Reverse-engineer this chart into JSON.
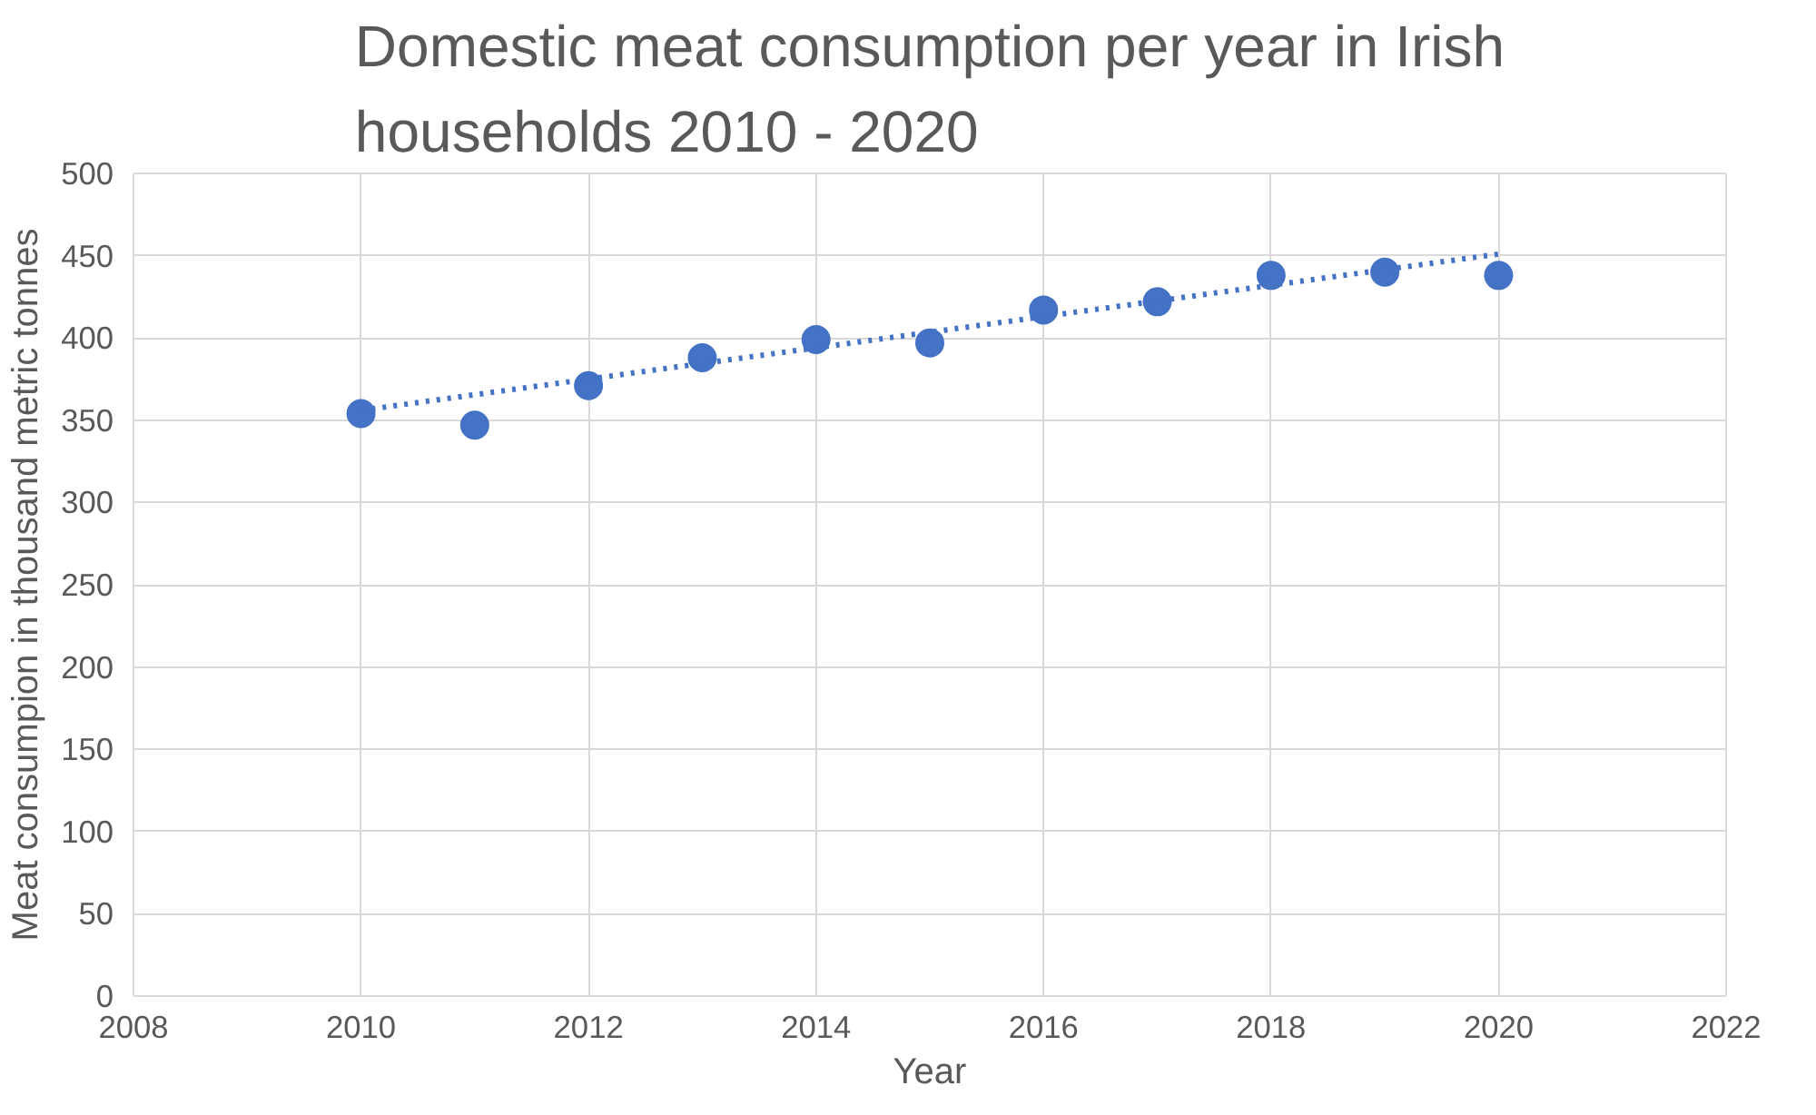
{
  "chart_data": {
    "type": "scatter",
    "title": "Domestic meat consumption per year in Irish households 2010 - 2020",
    "xlabel": "Year",
    "ylabel": "Meat consumpion in thousand metric tonnes",
    "series": [
      {
        "color": "#4472c4",
        "marker": "circle",
        "x": [
          2010,
          2011,
          2012,
          2013,
          2014,
          2015,
          2016,
          2017,
          2018,
          2019,
          2020
        ],
        "values": [
          354,
          347,
          371,
          388,
          399,
          397,
          417,
          422,
          438,
          440,
          438
        ]
      },
      {
        "type": "line",
        "color": "#4472c4",
        "line_style": "dotted",
        "marker": "none",
        "x": [
          2010,
          2020
        ],
        "values": [
          356,
          451
        ]
      }
    ],
    "xlim": [
      2008,
      2022
    ],
    "xticks": [
      2008,
      2010,
      2012,
      2014,
      2016,
      2018,
      2020,
      2022
    ],
    "ylim": [
      0,
      500
    ],
    "yticks": [
      0,
      50,
      100,
      150,
      200,
      250,
      300,
      350,
      400,
      450,
      500
    ],
    "grid": true
  }
}
